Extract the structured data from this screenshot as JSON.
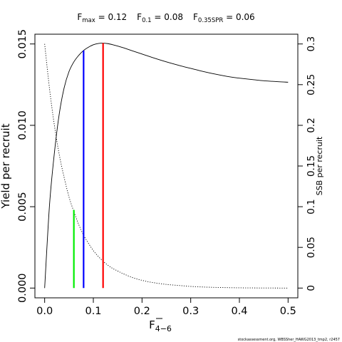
{
  "chart_data": {
    "type": "line",
    "title": {
      "fmax": {
        "prefix": "F",
        "sub": "max",
        "value": "0.12"
      },
      "f01": {
        "prefix": "F",
        "sub": "0.1",
        "value": "0.08"
      },
      "f035": {
        "prefix": "F",
        "sub": "0.35SPR",
        "value": "0.06"
      }
    },
    "xlabel": {
      "text": "F",
      "sub": "4−6"
    },
    "ylabel": "Yield per recruit",
    "ylabel_right": "SSB per recruit",
    "xlim": [
      -0.02,
      0.52
    ],
    "ylim": [
      -0.0006,
      0.0156
    ],
    "ylim_right": [
      -0.012,
      0.312
    ],
    "x_ticks": [
      "0.0",
      "0.1",
      "0.2",
      "0.3",
      "0.4",
      "0.5"
    ],
    "x_tick_values": [
      0,
      0.1,
      0.2,
      0.3,
      0.4,
      0.5
    ],
    "y_ticks": [
      "0.000",
      "0.005",
      "0.010",
      "0.015"
    ],
    "y_tick_values": [
      0,
      0.005,
      0.01,
      0.015
    ],
    "y_right_ticks": [
      "0",
      "0.05",
      "0.1",
      "0.15",
      "0.2",
      "0.25",
      "0.3"
    ],
    "y_right_tick_values": [
      0,
      0.05,
      0.1,
      0.15,
      0.2,
      0.25,
      0.3
    ],
    "series": [
      {
        "key": "ypr",
        "axis": "left",
        "style": "solid",
        "color": "#000000",
        "x": [
          0,
          0.01,
          0.02,
          0.03,
          0.04,
          0.05,
          0.06,
          0.07,
          0.08,
          0.09,
          0.1,
          0.11,
          0.12,
          0.13,
          0.14,
          0.16,
          0.18,
          0.2,
          0.22,
          0.25,
          0.28,
          0.3,
          0.32,
          0.35,
          0.38,
          0.4,
          0.43,
          0.45,
          0.48,
          0.5
        ],
        "y": [
          0,
          0.0051,
          0.0083,
          0.0107,
          0.0123,
          0.0133,
          0.0139,
          0.0143,
          0.0146,
          0.0148,
          0.01495,
          0.01503,
          0.01505,
          0.01502,
          0.01495,
          0.01478,
          0.01458,
          0.01438,
          0.01418,
          0.0139,
          0.01365,
          0.0135,
          0.01335,
          0.01315,
          0.01298,
          0.0129,
          0.0128,
          0.01274,
          0.01268,
          0.01265
        ]
      },
      {
        "key": "sspr",
        "axis": "right",
        "style": "dotted",
        "color": "#000000",
        "x": [
          0,
          0.01,
          0.02,
          0.03,
          0.04,
          0.05,
          0.06,
          0.07,
          0.08,
          0.09,
          0.1,
          0.11,
          0.12,
          0.13,
          0.14,
          0.15,
          0.16,
          0.18,
          0.2,
          0.22,
          0.25,
          0.28,
          0.3,
          0.33,
          0.36,
          0.4,
          0.45,
          0.5
        ],
        "y": [
          0.3,
          0.245,
          0.2,
          0.164,
          0.136,
          0.112,
          0.094,
          0.078,
          0.065,
          0.055,
          0.046,
          0.039,
          0.033,
          0.028,
          0.024,
          0.021,
          0.018,
          0.013,
          0.0095,
          0.007,
          0.0045,
          0.003,
          0.002,
          0.0012,
          0.0007,
          0.0003,
          0.0001,
          0
        ]
      }
    ],
    "reference_lines": [
      {
        "key": "f035",
        "x": 0.06,
        "color": "#00ee00",
        "y_top": 0.0048
      },
      {
        "key": "f01",
        "x": 0.08,
        "color": "#0000ff",
        "y_top": 0.0146
      },
      {
        "key": "fmax",
        "x": 0.12,
        "color": "#ff0000",
        "y_top": 0.01505
      }
    ],
    "credit": "stockassessment.org, WBSSher_HAWG2013_tmp2, r2457"
  }
}
